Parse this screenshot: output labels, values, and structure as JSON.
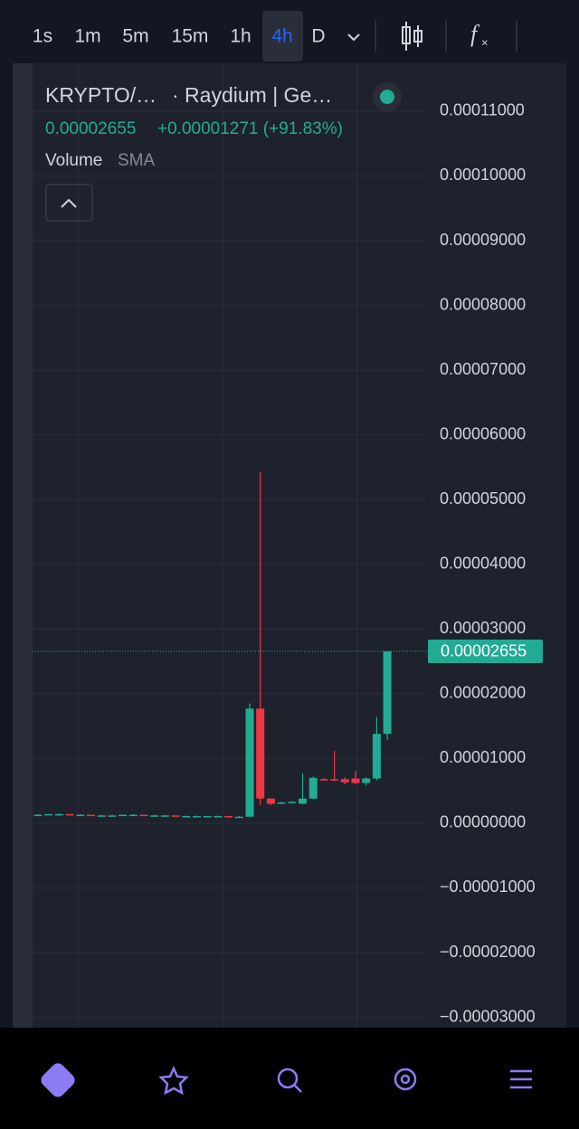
{
  "toolbar": {
    "intervals": [
      "1s",
      "1m",
      "5m",
      "15m",
      "1h",
      "4h",
      "D"
    ],
    "active": 5
  },
  "legend": {
    "symbol": "KRYPTO/…",
    "exchange": "· Raydium | Ge…",
    "price": "0.00002655",
    "change": "+0.00001271 (+91.83%)",
    "indicator": "Volume",
    "indicator_type": "SMA"
  },
  "chart_data": {
    "type": "candlestick",
    "up_color": "#22ab94",
    "down_color": "#f23645",
    "grid": true,
    "ylim": [
      -3.16e-05,
      0.0001174
    ],
    "yticks": [
      {
        "value": 0.00011,
        "label": "0.00011000"
      },
      {
        "value": 0.0001,
        "label": "0.00010000"
      },
      {
        "value": 9e-05,
        "label": "0.00009000"
      },
      {
        "value": 8e-05,
        "label": "0.00008000"
      },
      {
        "value": 7e-05,
        "label": "0.00007000"
      },
      {
        "value": 6e-05,
        "label": "0.00006000"
      },
      {
        "value": 5e-05,
        "label": "0.00005000"
      },
      {
        "value": 4e-05,
        "label": "0.00004000"
      },
      {
        "value": 3e-05,
        "label": "0.00003000"
      },
      {
        "value": 2e-05,
        "label": "0.00002000"
      },
      {
        "value": 1e-05,
        "label": "0.00001000"
      },
      {
        "value": 0,
        "label": "0.00000000"
      },
      {
        "value": -1e-05,
        "label": "−0.00001000"
      },
      {
        "value": -2e-05,
        "label": "−0.00002000"
      },
      {
        "value": -3e-05,
        "label": "−0.00003000"
      }
    ],
    "open": [
      1.3e-06,
      1.3e-06,
      1.4e-06,
      1.4e-06,
      1.3e-06,
      1.3e-06,
      1.2e-06,
      1.2e-06,
      1.2e-06,
      1.3e-06,
      1.3e-06,
      1.2e-06,
      1.2e-06,
      1.2e-06,
      1.1e-06,
      1.1e-06,
      1.1e-06,
      1.1e-06,
      1.1e-06,
      1e-06,
      1e-06,
      1.77e-05,
      3.8e-06,
      3e-06,
      3.2e-06,
      3e-06,
      3.8e-06,
      6.8e-06,
      6.8e-06,
      6.8e-06,
      6.9e-06,
      6.2e-06,
      6.9e-06,
      1.38e-05
    ],
    "high": [
      1.4e-06,
      1.4e-06,
      1.5e-06,
      1.4e-06,
      1.4e-06,
      1.3e-06,
      1.3e-06,
      1.3e-06,
      1.3e-06,
      1.4e-06,
      1.3e-06,
      1.3e-06,
      1.2e-06,
      1.2e-06,
      1.2e-06,
      1.2e-06,
      1.1e-06,
      1.2e-06,
      1.1e-06,
      1.1e-06,
      1.85e-05,
      5.42e-05,
      3.8e-06,
      3.3e-06,
      3.4e-06,
      7.7e-06,
      7.2e-06,
      7e-06,
      1.12e-05,
      7.1e-06,
      8.1e-06,
      7.1e-06,
      1.64e-05,
      2.65e-05
    ],
    "low": [
      1.2e-06,
      1.2e-06,
      1.3e-06,
      1.3e-06,
      1.2e-06,
      1.2e-06,
      1.1e-06,
      1.1e-06,
      1.1e-06,
      1.2e-06,
      1.2e-06,
      1.1e-06,
      1.1e-06,
      1.1e-06,
      1e-06,
      1e-06,
      1e-06,
      1e-06,
      9e-07,
      9e-07,
      1e-06,
      2.8e-06,
      2.8e-06,
      2.9e-06,
      3e-06,
      2.9e-06,
      3.7e-06,
      6.6e-06,
      6.5e-06,
      6e-06,
      6e-06,
      5.8e-06,
      6.6e-06,
      1.29e-05
    ],
    "close": [
      1.3e-06,
      1.4e-06,
      1.4e-06,
      1.3e-06,
      1.3e-06,
      1.2e-06,
      1.2e-06,
      1.2e-06,
      1.3e-06,
      1.3e-06,
      1.2e-06,
      1.2e-06,
      1.2e-06,
      1.1e-06,
      1.1e-06,
      1.1e-06,
      1.1e-06,
      1.1e-06,
      1e-06,
      1e-06,
      1.77e-05,
      3.8e-06,
      3e-06,
      3.2e-06,
      3.3e-06,
      3.8e-06,
      7e-06,
      6.7e-06,
      6.6e-06,
      6.3e-06,
      6.2e-06,
      6.9e-06,
      1.38e-05,
      2.655e-05
    ],
    "last_price": 2.655e-05,
    "last_price_label": "0.00002655"
  }
}
